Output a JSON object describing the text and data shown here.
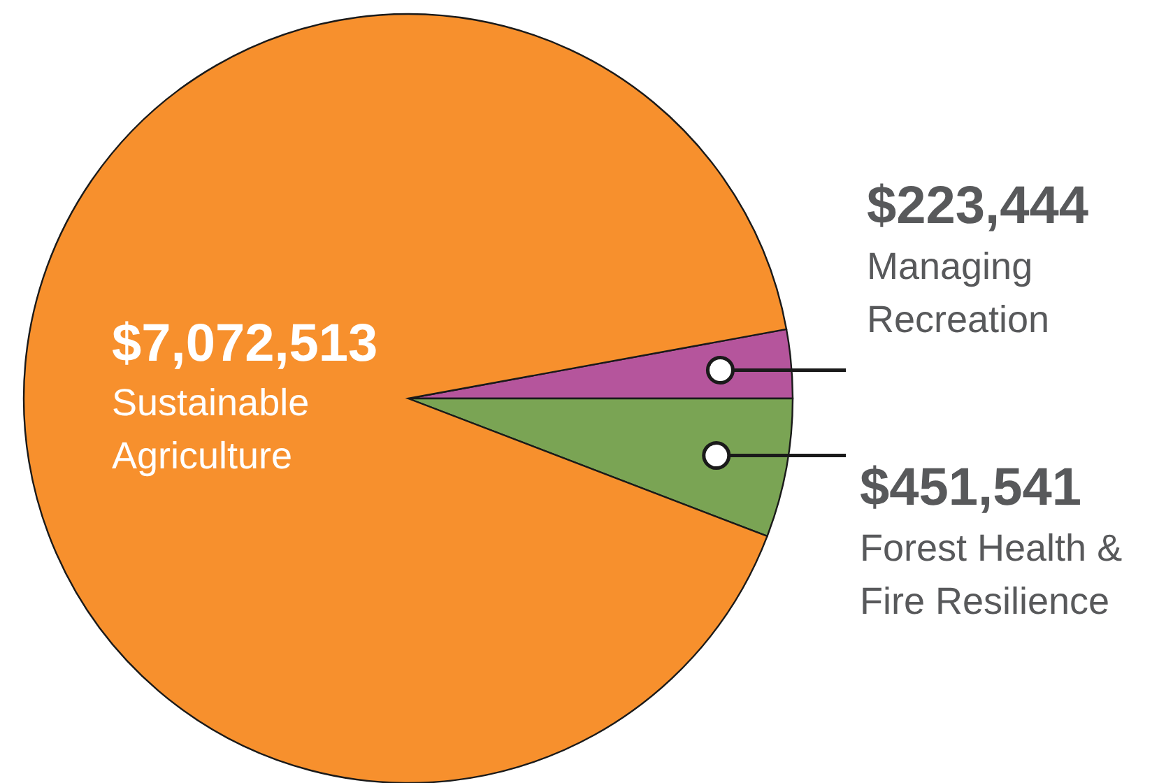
{
  "chart_data": {
    "type": "pie",
    "categories": [
      "Managing Recreation",
      "Forest Health & Fire Resilience",
      "Sustainable Agriculture"
    ],
    "values": [
      223444,
      451541,
      7072513
    ],
    "value_labels": [
      "$223,444",
      "$451,541",
      "$7,072,513"
    ],
    "colors": [
      "#b5559c",
      "#7aa454",
      "#f7902d"
    ]
  }
}
